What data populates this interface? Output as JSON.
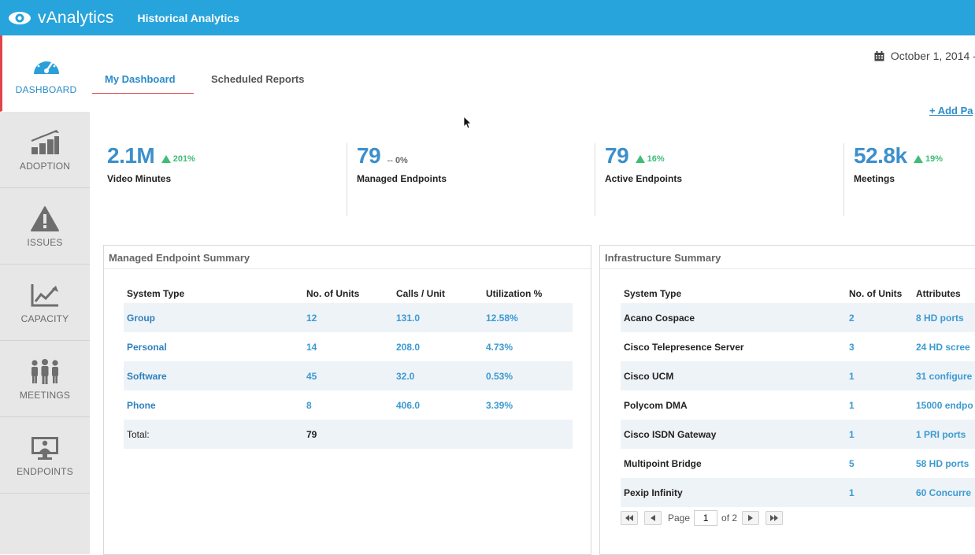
{
  "header": {
    "brand": "vAnalytics",
    "app_title": "Historical Analytics",
    "accent": "#27a4dc"
  },
  "sidebar": {
    "items": [
      {
        "label": "DASHBOARD",
        "icon": "gauge-icon",
        "active": true
      },
      {
        "label": "ADOPTION",
        "icon": "growth-bars-icon",
        "active": false
      },
      {
        "label": "ISSUES",
        "icon": "warning-icon",
        "active": false
      },
      {
        "label": "CAPACITY",
        "icon": "line-chart-icon",
        "active": false
      },
      {
        "label": "MEETINGS",
        "icon": "people-icon",
        "active": false
      },
      {
        "label": "ENDPOINTS",
        "icon": "monitor-user-icon",
        "active": false
      }
    ]
  },
  "main": {
    "date_range": "October 1, 2014 -",
    "tabs": [
      {
        "label": "My Dashboard",
        "active": true
      },
      {
        "label": "Scheduled Reports",
        "active": false
      }
    ],
    "add_panel": "+ Add Pa"
  },
  "kpis": [
    {
      "value": "2.1M",
      "delta": "201%",
      "trend": "up",
      "label": "Video Minutes"
    },
    {
      "value": "79",
      "delta": "0%",
      "trend": "flat",
      "flat_glyph": "--",
      "label": "Managed Endpoints"
    },
    {
      "value": "79",
      "delta": "16%",
      "trend": "up",
      "label": "Active Endpoints"
    },
    {
      "value": "52.8k",
      "delta": "19%",
      "trend": "up",
      "label": "Meetings"
    }
  ],
  "managed_summary": {
    "title": "Managed Endpoint Summary",
    "columns": [
      "System Type",
      "No. of Units",
      "Calls / Unit",
      "Utilization %"
    ],
    "rows": [
      [
        "Group",
        "12",
        "131.0",
        "12.58%"
      ],
      [
        "Personal",
        "14",
        "208.0",
        "4.73%"
      ],
      [
        "Software",
        "45",
        "32.0",
        "0.53%"
      ],
      [
        "Phone",
        "8",
        "406.0",
        "3.39%"
      ]
    ],
    "total_label": "Total:",
    "total_units": "79"
  },
  "infra_summary": {
    "title": "Infrastructure Summary",
    "columns": [
      "System Type",
      "No. of Units",
      "Attributes"
    ],
    "rows": [
      [
        "Acano Cospace",
        "2",
        "8 HD ports"
      ],
      [
        "Cisco Telepresence Server",
        "3",
        "24 HD scree"
      ],
      [
        "Cisco UCM",
        "1",
        "31 configure"
      ],
      [
        "Polycom DMA",
        "1",
        "15000 endpo"
      ],
      [
        "Cisco ISDN Gateway",
        "1",
        "1 PRI ports"
      ],
      [
        "Multipoint Bridge",
        "5",
        "58 HD ports"
      ],
      [
        "Pexip Infinity",
        "1",
        "60 Concurre"
      ]
    ],
    "pager": {
      "page_label": "Page",
      "page": "1",
      "of_label": "of 2"
    }
  }
}
